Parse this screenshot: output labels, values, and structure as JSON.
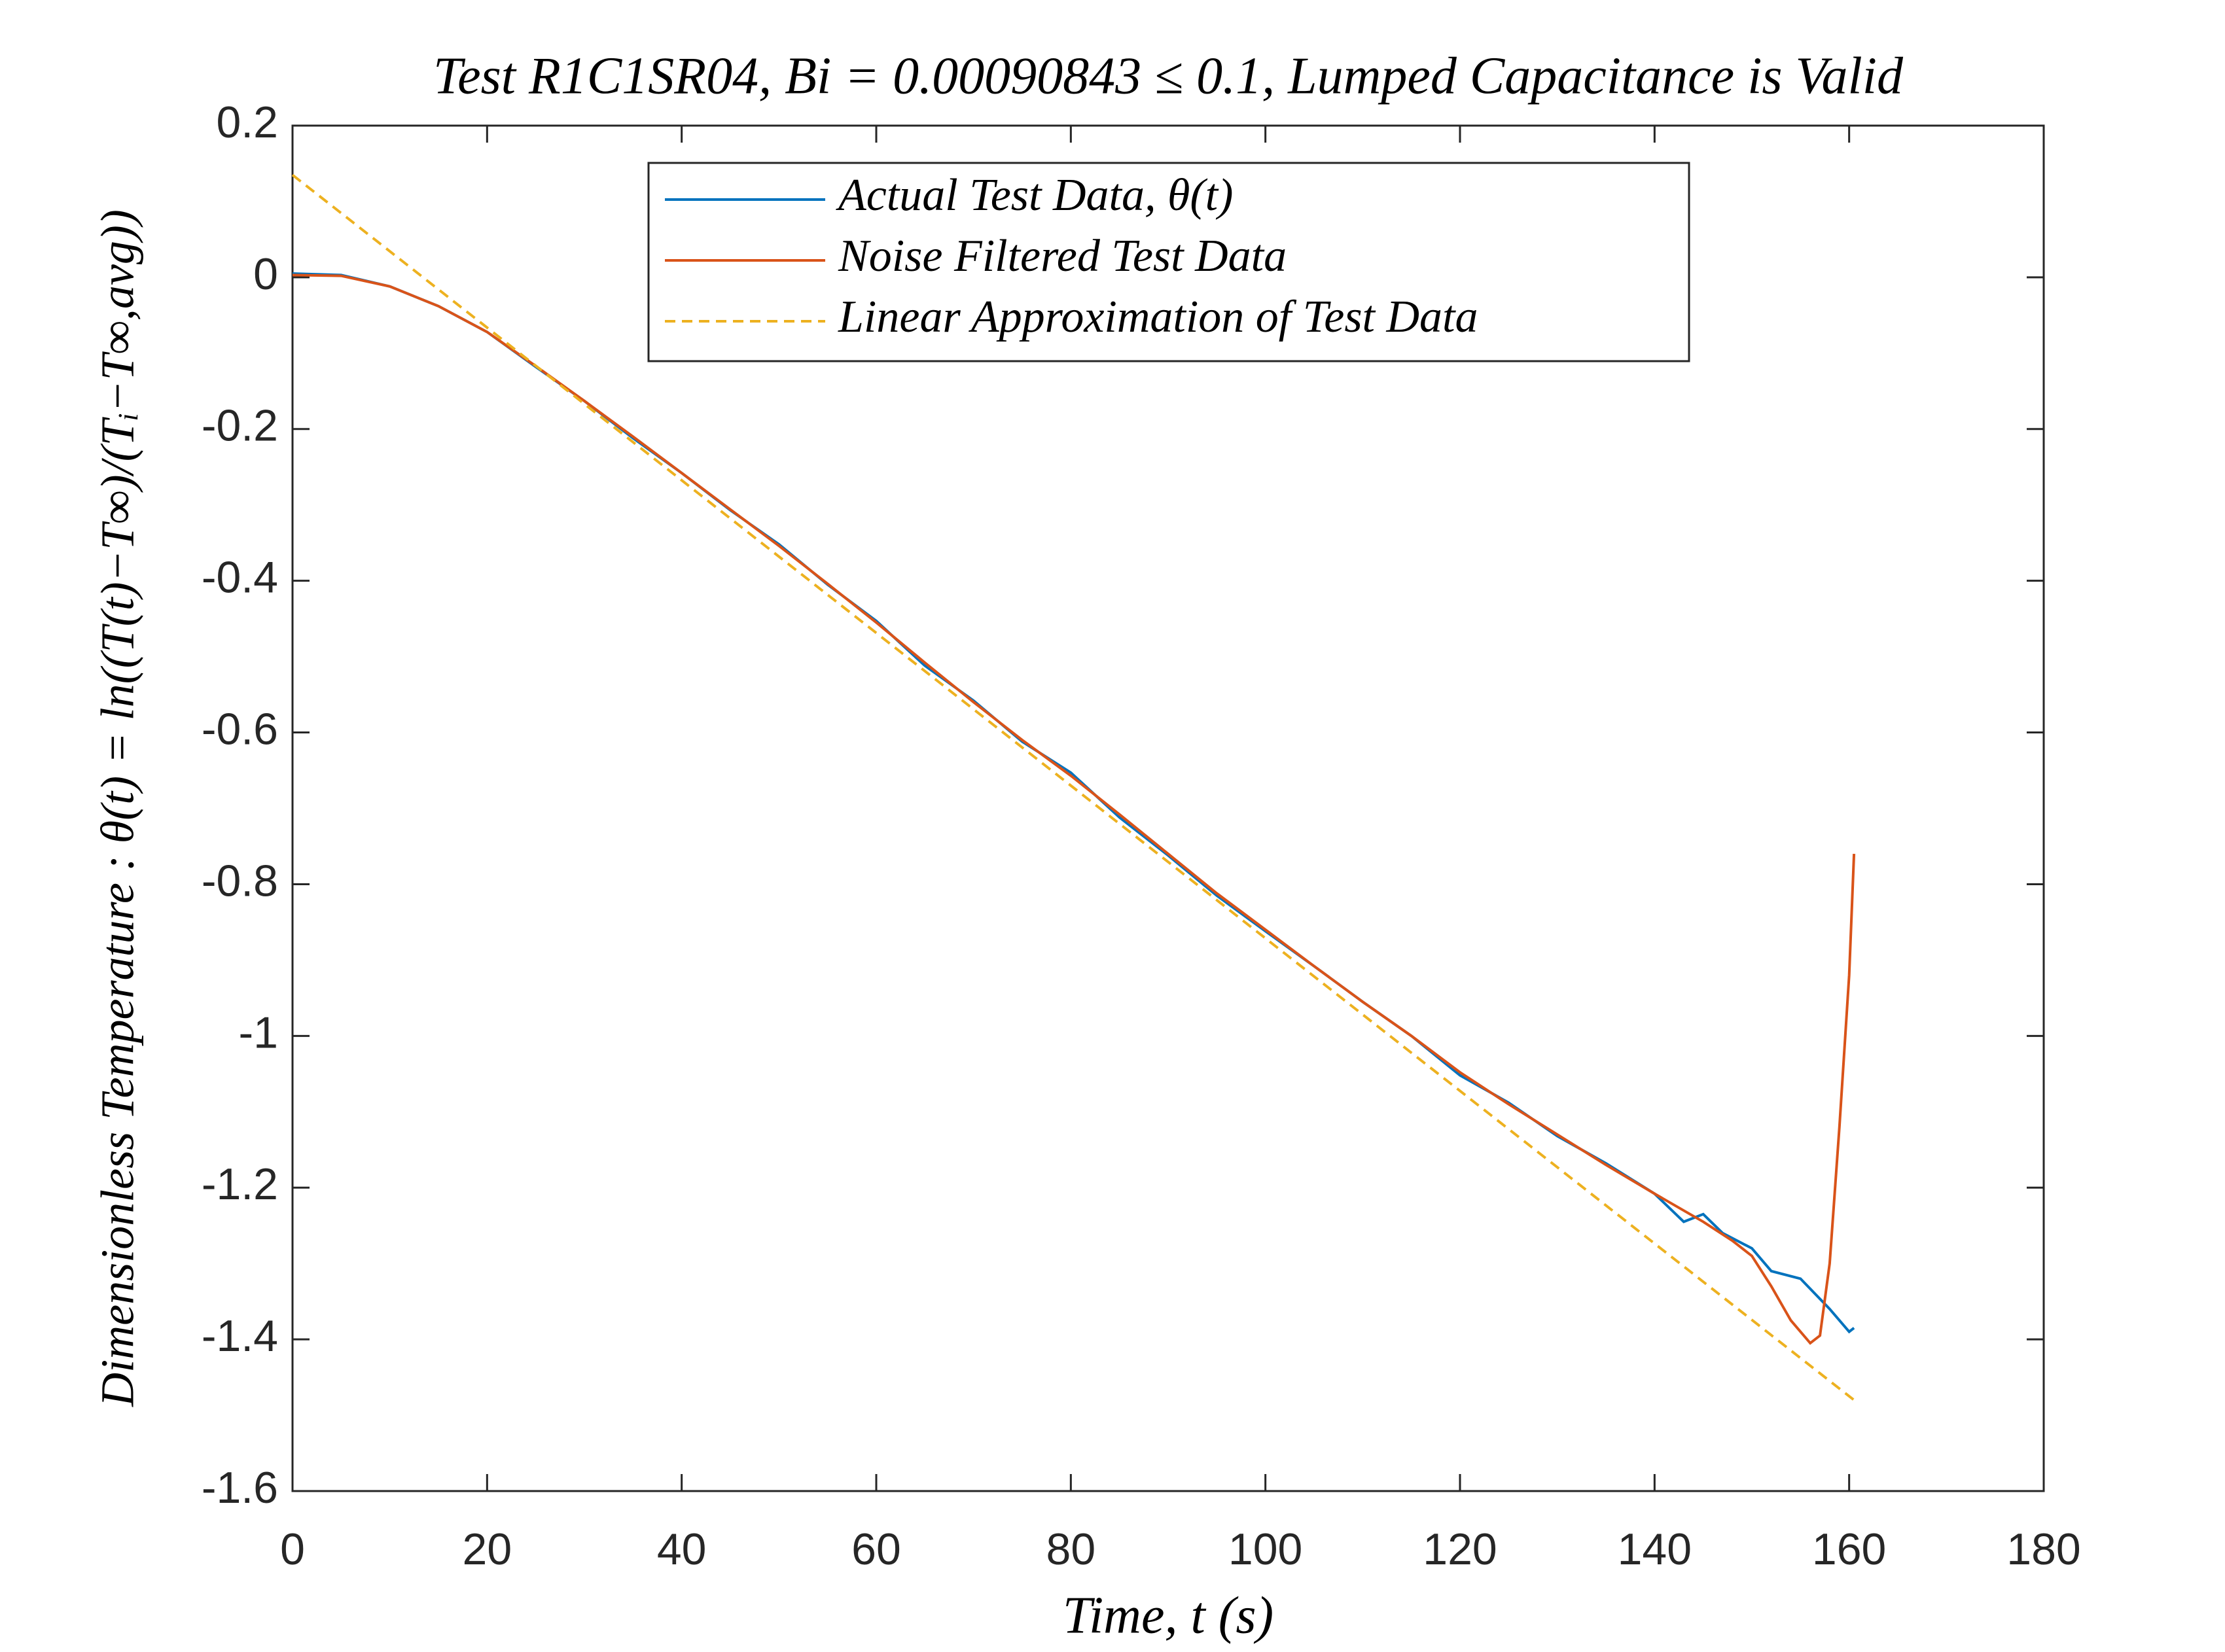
{
  "chart_data": {
    "type": "line",
    "title": "Test R1C1SR04,  Bi  =  0.00090843 ≤ 0.1,  Lumped Capacitance is Valid",
    "x_label": "Time,  t (s)",
    "y_label": "Dimensionless Temperature : θ(t) =  ln((T(t)−T∞)/(Tᵢ−T∞,avg))",
    "xlim": [
      0,
      180
    ],
    "xticks": [
      0,
      20,
      40,
      60,
      80,
      100,
      120,
      140,
      160,
      180
    ],
    "ylim": [
      -1.6,
      0.2
    ],
    "yticks": [
      0.2,
      0,
      -0.2,
      -0.4,
      -0.6,
      -0.8,
      -1,
      -1.2,
      -1.4,
      -1.6
    ],
    "legend": "top-center",
    "series": [
      {
        "name": "Actual Test Data, θ(t)",
        "color": "#0072bd",
        "style": "solid",
        "x": [
          0,
          5,
          10,
          15,
          20,
          25,
          30,
          35,
          40,
          45,
          50,
          55,
          60,
          65,
          70,
          75,
          80,
          85,
          90,
          95,
          100,
          105,
          110,
          115,
          120,
          125,
          130,
          135,
          140,
          143,
          145,
          147,
          150,
          152,
          155,
          158,
          160,
          160.5
        ],
        "values": [
          0.005,
          0.003,
          -0.012,
          -0.038,
          -0.072,
          -0.118,
          -0.163,
          -0.212,
          -0.258,
          -0.307,
          -0.352,
          -0.405,
          -0.453,
          -0.512,
          -0.558,
          -0.612,
          -0.653,
          -0.712,
          -0.762,
          -0.815,
          -0.862,
          -0.908,
          -0.955,
          -1.0,
          -1.052,
          -1.088,
          -1.132,
          -1.168,
          -1.208,
          -1.245,
          -1.235,
          -1.26,
          -1.28,
          -1.31,
          -1.32,
          -1.36,
          -1.39,
          -1.385
        ]
      },
      {
        "name": "Noise Filtered Test Data",
        "color": "#d95319",
        "style": "solid",
        "x": [
          0,
          5,
          10,
          15,
          20,
          25,
          30,
          35,
          40,
          45,
          50,
          55,
          60,
          65,
          70,
          75,
          80,
          85,
          90,
          95,
          100,
          105,
          110,
          115,
          120,
          125,
          130,
          135,
          140,
          145,
          148,
          150,
          152,
          154,
          156,
          157,
          158,
          159,
          160,
          160.5
        ],
        "values": [
          0.003,
          0.002,
          -0.012,
          -0.038,
          -0.072,
          -0.117,
          -0.163,
          -0.21,
          -0.258,
          -0.306,
          -0.354,
          -0.404,
          -0.455,
          -0.508,
          -0.56,
          -0.61,
          -0.657,
          -0.708,
          -0.76,
          -0.812,
          -0.86,
          -0.908,
          -0.955,
          -1.0,
          -1.048,
          -1.09,
          -1.13,
          -1.17,
          -1.208,
          -1.245,
          -1.27,
          -1.29,
          -1.33,
          -1.375,
          -1.405,
          -1.395,
          -1.3,
          -1.12,
          -0.92,
          -0.76
        ]
      },
      {
        "name": "Linear Approximation of Test Data",
        "color": "#edb120",
        "style": "dashed",
        "x": [
          0,
          160.5
        ],
        "values": [
          0.135,
          -1.48
        ]
      }
    ]
  }
}
